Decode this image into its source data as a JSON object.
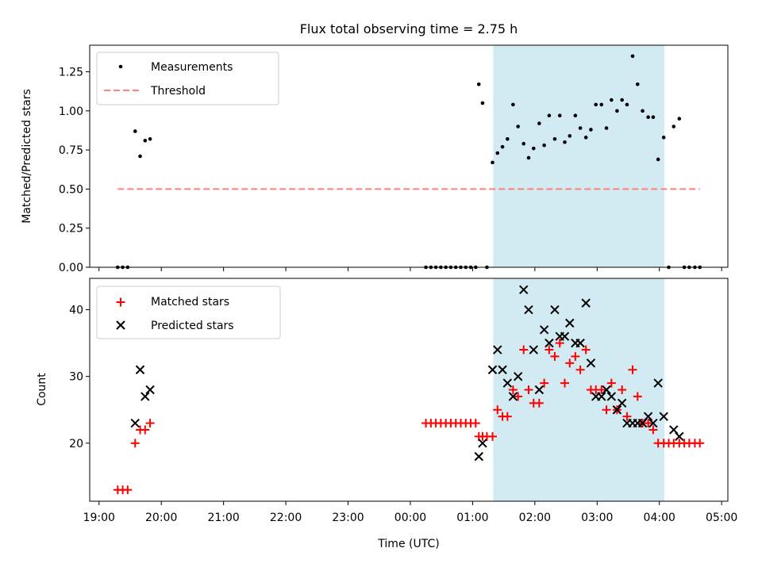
{
  "title": "Flux total observing time = 2.75 h",
  "colors": {
    "measurement": "#000000",
    "threshold": "#ff7f7f",
    "matched": "#ff0000",
    "predicted": "#000000",
    "highlight": "#add8e6"
  },
  "chart_data": [
    {
      "type": "scatter",
      "ylabel": "Matched/Predicted stars",
      "ylim": [
        0,
        1.42
      ],
      "yticks": [
        0.0,
        0.25,
        0.5,
        0.75,
        1.0,
        1.25
      ],
      "ytick_labels": [
        "0.00",
        "0.25",
        "0.50",
        "0.75",
        "1.00",
        "1.25"
      ],
      "xlim_hours": [
        18.85,
        29.1
      ],
      "highlight_span_hours": [
        25.33,
        28.08
      ],
      "legend": {
        "placement": "upper-left",
        "entries": [
          "Measurements",
          "Threshold"
        ]
      },
      "threshold": {
        "name": "Threshold",
        "value": 0.5,
        "x_range_hours": [
          19.3,
          28.65
        ]
      },
      "series": [
        {
          "name": "Measurements",
          "x_hours": [
            19.3,
            19.38,
            19.46,
            19.58,
            19.66,
            19.74,
            19.82,
            24.25,
            24.33,
            24.41,
            24.49,
            24.57,
            24.65,
            24.73,
            24.81,
            24.89,
            24.97,
            25.05,
            25.1,
            25.16,
            25.23,
            25.32,
            25.4,
            25.48,
            25.56,
            25.65,
            25.73,
            25.82,
            25.9,
            25.98,
            26.07,
            26.15,
            26.23,
            26.32,
            26.4,
            26.48,
            26.56,
            26.65,
            26.73,
            26.82,
            26.9,
            26.98,
            27.07,
            27.15,
            27.23,
            27.32,
            27.4,
            27.48,
            27.57,
            27.65,
            27.73,
            27.82,
            27.9,
            27.98,
            28.07,
            28.15,
            28.23,
            28.32,
            28.4,
            28.48,
            28.57,
            28.65
          ],
          "y": [
            0,
            0,
            0,
            0.87,
            0.71,
            0.81,
            0.82,
            0,
            0,
            0,
            0,
            0,
            0,
            0,
            0,
            0,
            0,
            0,
            1.17,
            1.05,
            0,
            0.67,
            0.73,
            0.77,
            0.82,
            1.04,
            0.9,
            0.79,
            0.7,
            0.76,
            0.92,
            0.78,
            0.97,
            0.82,
            0.97,
            0.8,
            0.84,
            0.97,
            0.89,
            0.83,
            0.88,
            1.04,
            1.04,
            0.89,
            1.07,
            1.0,
            1.07,
            1.04,
            1.35,
            1.17,
            1.0,
            0.96,
            0.96,
            0.69,
            0.83,
            0,
            0.9,
            0.95,
            0,
            0,
            0,
            0
          ]
        }
      ]
    },
    {
      "type": "scatter",
      "xlabel": "Time (UTC)",
      "ylabel": "Count",
      "ylim": [
        11.3,
        44.7
      ],
      "yticks": [
        20,
        30,
        40
      ],
      "ytick_labels": [
        "20",
        "30",
        "40"
      ],
      "xlim_hours": [
        18.85,
        29.1
      ],
      "xticks_hours": [
        19,
        20,
        21,
        22,
        23,
        24,
        25,
        26,
        27,
        28,
        29
      ],
      "xtick_labels": [
        "19:00",
        "20:00",
        "21:00",
        "22:00",
        "23:00",
        "00:00",
        "01:00",
        "02:00",
        "03:00",
        "04:00",
        "05:00"
      ],
      "highlight_span_hours": [
        25.33,
        28.08
      ],
      "legend": {
        "placement": "upper-left",
        "entries": [
          "Matched stars",
          "Predicted stars"
        ]
      },
      "series": [
        {
          "name": "Matched stars",
          "marker": "plus",
          "x_hours": [
            19.3,
            19.38,
            19.46,
            19.58,
            19.66,
            19.74,
            19.82,
            24.25,
            24.33,
            24.41,
            24.49,
            24.57,
            24.65,
            24.73,
            24.81,
            24.89,
            24.97,
            25.05,
            25.1,
            25.16,
            25.23,
            25.32,
            25.4,
            25.48,
            25.56,
            25.65,
            25.73,
            25.82,
            25.9,
            25.98,
            26.07,
            26.15,
            26.23,
            26.32,
            26.4,
            26.48,
            26.56,
            26.65,
            26.73,
            26.82,
            26.9,
            26.98,
            27.07,
            27.15,
            27.23,
            27.32,
            27.4,
            27.48,
            27.57,
            27.65,
            27.73,
            27.82,
            27.9,
            27.98,
            28.07,
            28.15,
            28.23,
            28.32,
            28.4,
            28.48,
            28.57,
            28.65
          ],
          "y": [
            13,
            13,
            13,
            20,
            22,
            22,
            23,
            23,
            23,
            23,
            23,
            23,
            23,
            23,
            23,
            23,
            23,
            23,
            21,
            21,
            21,
            21,
            25,
            24,
            24,
            28,
            27,
            34,
            28,
            26,
            26,
            29,
            34,
            33,
            35,
            29,
            32,
            33,
            31,
            34,
            28,
            28,
            28,
            25,
            29,
            25,
            28,
            24,
            31,
            27,
            23,
            23,
            22,
            20,
            20,
            20,
            20,
            20,
            20,
            20,
            20,
            20
          ]
        },
        {
          "name": "Predicted stars",
          "marker": "cross",
          "x_hours": [
            19.58,
            19.66,
            19.74,
            19.82,
            25.1,
            25.16,
            25.32,
            25.4,
            25.48,
            25.56,
            25.65,
            25.73,
            25.82,
            25.9,
            25.98,
            26.07,
            26.15,
            26.23,
            26.32,
            26.4,
            26.48,
            26.56,
            26.65,
            26.73,
            26.82,
            26.9,
            26.98,
            27.07,
            27.15,
            27.23,
            27.32,
            27.4,
            27.48,
            27.57,
            27.65,
            27.73,
            27.82,
            27.9,
            27.98,
            28.07,
            28.23,
            28.32
          ],
          "y": [
            23,
            31,
            27,
            28,
            18,
            20,
            31,
            34,
            31,
            29,
            27,
            30,
            43,
            40,
            34,
            28,
            37,
            35,
            40,
            36,
            36,
            38,
            35,
            35,
            41,
            32,
            27,
            27,
            28,
            27,
            25,
            26,
            23,
            23,
            23,
            23,
            24,
            23,
            29,
            24,
            22,
            21
          ]
        }
      ]
    }
  ]
}
